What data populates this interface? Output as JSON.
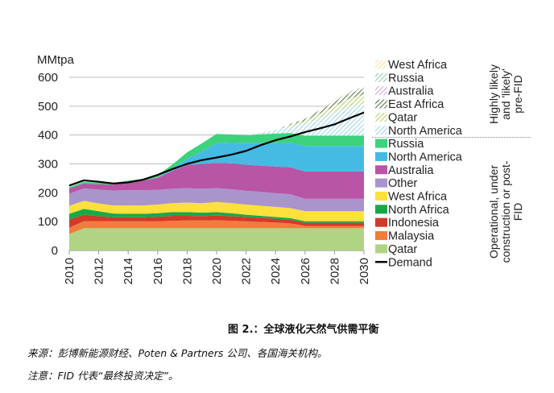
{
  "chart_data": {
    "type": "area",
    "title": "图 2.：全球液化天然气供需平衡",
    "ylabel": "MMtpa",
    "xlabel": "",
    "ylim": [
      0,
      600
    ],
    "yticks": [
      "0",
      "100",
      "200",
      "300",
      "400",
      "500",
      "600"
    ],
    "grid": true,
    "x": [
      2010,
      2011,
      2012,
      2013,
      2014,
      2015,
      2016,
      2017,
      2018,
      2019,
      2020,
      2021,
      2022,
      2023,
      2024,
      2025,
      2026,
      2027,
      2028,
      2029,
      2030
    ],
    "xticks": [
      "2010",
      "2012",
      "2014",
      "2016",
      "2018",
      "2020",
      "2022",
      "2024",
      "2026",
      "2028",
      "2030"
    ],
    "legend_position": "right",
    "stacked": true,
    "series": [
      {
        "name": "Qatar",
        "group": "operational",
        "color": "#b0d484",
        "pattern": "solid",
        "values": [
          57,
          77,
          77,
          77,
          77,
          77,
          77,
          77,
          77,
          77,
          77,
          77,
          77,
          77,
          77,
          77,
          77,
          77,
          77,
          77,
          77
        ]
      },
      {
        "name": "Malaysia",
        "group": "operational",
        "color": "#f07d3c",
        "pattern": "solid",
        "values": [
          22,
          25,
          25,
          24,
          24,
          24,
          24,
          26,
          27,
          27,
          28,
          26,
          24,
          22,
          20,
          17,
          8,
          8,
          8,
          8,
          8
        ]
      },
      {
        "name": "Indonesia",
        "group": "operational",
        "color": "#d23a2a",
        "pattern": "solid",
        "values": [
          28,
          22,
          17,
          14,
          14,
          14,
          16,
          17,
          16,
          15,
          16,
          16,
          15,
          14,
          13,
          12,
          11,
          11,
          11,
          11,
          11
        ]
      },
      {
        "name": "North Africa",
        "group": "operational",
        "color": "#18a84a",
        "pattern": "solid",
        "values": [
          20,
          20,
          17,
          13,
          12,
          12,
          12,
          13,
          13,
          12,
          12,
          10,
          8,
          7,
          6,
          6,
          5,
          5,
          5,
          5,
          5
        ]
      },
      {
        "name": "West Africa",
        "group": "operational",
        "color": "#fde03c",
        "pattern": "solid",
        "values": [
          28,
          28,
          27,
          28,
          29,
          29,
          30,
          31,
          33,
          33,
          35,
          35,
          35,
          35,
          35,
          35,
          35,
          35,
          35,
          35,
          35
        ]
      },
      {
        "name": "Other",
        "group": "operational",
        "color": "#a994cc",
        "pattern": "solid",
        "values": [
          42,
          43,
          48,
          52,
          53,
          53,
          51,
          50,
          50,
          50,
          48,
          48,
          48,
          48,
          48,
          48,
          43,
          43,
          43,
          43,
          43
        ]
      },
      {
        "name": "Australia",
        "group": "operational",
        "color": "#b855a4",
        "pattern": "solid",
        "values": [
          18,
          17,
          18,
          20,
          27,
          33,
          42,
          62,
          80,
          86,
          88,
          90,
          90,
          91,
          92,
          93,
          95,
          95,
          95,
          95,
          95
        ]
      },
      {
        "name": "North America",
        "group": "operational",
        "color": "#45bbe3",
        "pattern": "solid",
        "values": [
          0,
          0,
          0,
          0,
          0,
          0,
          1,
          8,
          22,
          43,
          68,
          72,
          76,
          79,
          82,
          85,
          88,
          88,
          88,
          88,
          88
        ]
      },
      {
        "name": "Russia",
        "group": "operational",
        "color": "#3dd27c",
        "pattern": "solid",
        "values": [
          5,
          6,
          6,
          6,
          6,
          6,
          8,
          14,
          22,
          28,
          32,
          28,
          26,
          30,
          32,
          34,
          36,
          36,
          36,
          36,
          36
        ]
      },
      {
        "name": "North America",
        "group": "pre-FID",
        "color": "#9fd6e8",
        "pattern": "hatch",
        "values": [
          0,
          0,
          0,
          0,
          0,
          0,
          0,
          0,
          0,
          0,
          0,
          0,
          0,
          5,
          12,
          24,
          40,
          60,
          80,
          100,
          110
        ]
      },
      {
        "name": "Qatar",
        "group": "pre-FID",
        "color": "#b5d36a",
        "pattern": "hatch",
        "values": [
          0,
          0,
          0,
          0,
          0,
          0,
          0,
          0,
          0,
          0,
          0,
          0,
          0,
          0,
          0,
          4,
          10,
          16,
          22,
          28,
          32
        ]
      },
      {
        "name": "East Africa",
        "group": "pre-FID",
        "color": "#5a7a4a",
        "pattern": "hatch",
        "values": [
          0,
          0,
          0,
          0,
          0,
          0,
          0,
          0,
          0,
          0,
          0,
          0,
          0,
          0,
          0,
          3,
          8,
          12,
          15,
          18,
          20
        ]
      },
      {
        "name": "Australia",
        "group": "pre-FID",
        "color": "#d9a6d6",
        "pattern": "hatch",
        "values": [
          0,
          0,
          0,
          0,
          0,
          0,
          0,
          0,
          0,
          0,
          0,
          0,
          0,
          0,
          0,
          0,
          0,
          1,
          2,
          3,
          4
        ]
      },
      {
        "name": "Russia",
        "group": "pre-FID",
        "color": "#8fcfa8",
        "pattern": "hatch",
        "values": [
          0,
          0,
          0,
          0,
          0,
          0,
          0,
          0,
          0,
          0,
          0,
          0,
          0,
          0,
          0,
          0,
          0,
          1,
          2,
          3,
          4
        ]
      },
      {
        "name": "West Africa",
        "group": "pre-FID",
        "color": "#f6e39a",
        "pattern": "hatch",
        "values": [
          0,
          0,
          0,
          0,
          0,
          0,
          0,
          0,
          0,
          0,
          0,
          0,
          0,
          0,
          0,
          0,
          0,
          0,
          1,
          2,
          2
        ]
      }
    ],
    "demand": {
      "name": "Demand",
      "color": "#000000",
      "values": [
        225,
        243,
        238,
        232,
        236,
        245,
        262,
        282,
        300,
        313,
        322,
        332,
        345,
        365,
        382,
        395,
        410,
        423,
        437,
        458,
        478
      ]
    },
    "legend": [
      {
        "label": "West Africa",
        "swatch": "hatch",
        "color": "#f6e39a"
      },
      {
        "label": "Russia",
        "swatch": "hatch",
        "color": "#8fcfa8"
      },
      {
        "label": "Australia",
        "swatch": "hatch",
        "color": "#d9a6d6"
      },
      {
        "label": "East Africa",
        "swatch": "hatch",
        "color": "#5a7a4a"
      },
      {
        "label": "Qatar",
        "swatch": "hatch",
        "color": "#b5d36a"
      },
      {
        "label": "North America",
        "swatch": "hatch",
        "color": "#9fd6e8"
      },
      {
        "label": "Russia",
        "swatch": "solid",
        "color": "#3dd27c"
      },
      {
        "label": "North America",
        "swatch": "solid",
        "color": "#45bbe3"
      },
      {
        "label": "Australia",
        "swatch": "solid",
        "color": "#b855a4"
      },
      {
        "label": "Other",
        "swatch": "solid",
        "color": "#a994cc"
      },
      {
        "label": "West Africa",
        "swatch": "solid",
        "color": "#fde03c"
      },
      {
        "label": "North Africa",
        "swatch": "solid",
        "color": "#18a84a"
      },
      {
        "label": "Indonesia",
        "swatch": "solid",
        "color": "#d23a2a"
      },
      {
        "label": "Malaysia",
        "swatch": "solid",
        "color": "#f07d3c"
      },
      {
        "label": "Qatar",
        "swatch": "solid",
        "color": "#b0d484"
      },
      {
        "label": "Demand",
        "swatch": "line",
        "color": "#000000"
      }
    ],
    "group_labels": {
      "pre_fid": [
        "Highly likely",
        "and 'likely'",
        "pre-FID"
      ],
      "operational": [
        "Operational, under",
        "construction or post-",
        "FID"
      ]
    }
  },
  "caption": {
    "figure_title": "图 2.：全球液化天然气供需平衡",
    "source": "来源：彭博新能源财经、Poten & Partners 公司、各国海关机构。",
    "note": "注意：FID 代表“最终投资决定”。"
  }
}
